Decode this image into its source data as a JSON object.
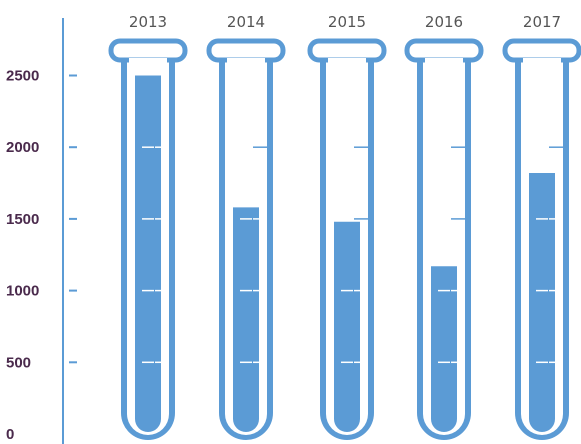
{
  "chart_data": {
    "type": "bar",
    "title": "",
    "xlabel": "",
    "ylabel": "",
    "categories": [
      "2013",
      "2014",
      "2015",
      "2016",
      "2017"
    ],
    "values": [
      2500,
      1580,
      1480,
      1170,
      1820
    ],
    "ylim": [
      0,
      2750
    ],
    "yticks": [
      "0",
      "500",
      "1000",
      "1500",
      "2000",
      "2500"
    ],
    "grid": false,
    "legend": "none",
    "colors": {
      "fill": "#5b9bd5",
      "outline": "#5b9bd5",
      "axis": "#5b9bd5",
      "tick_label": "#4a2a4c",
      "category_label": "#555555"
    }
  }
}
